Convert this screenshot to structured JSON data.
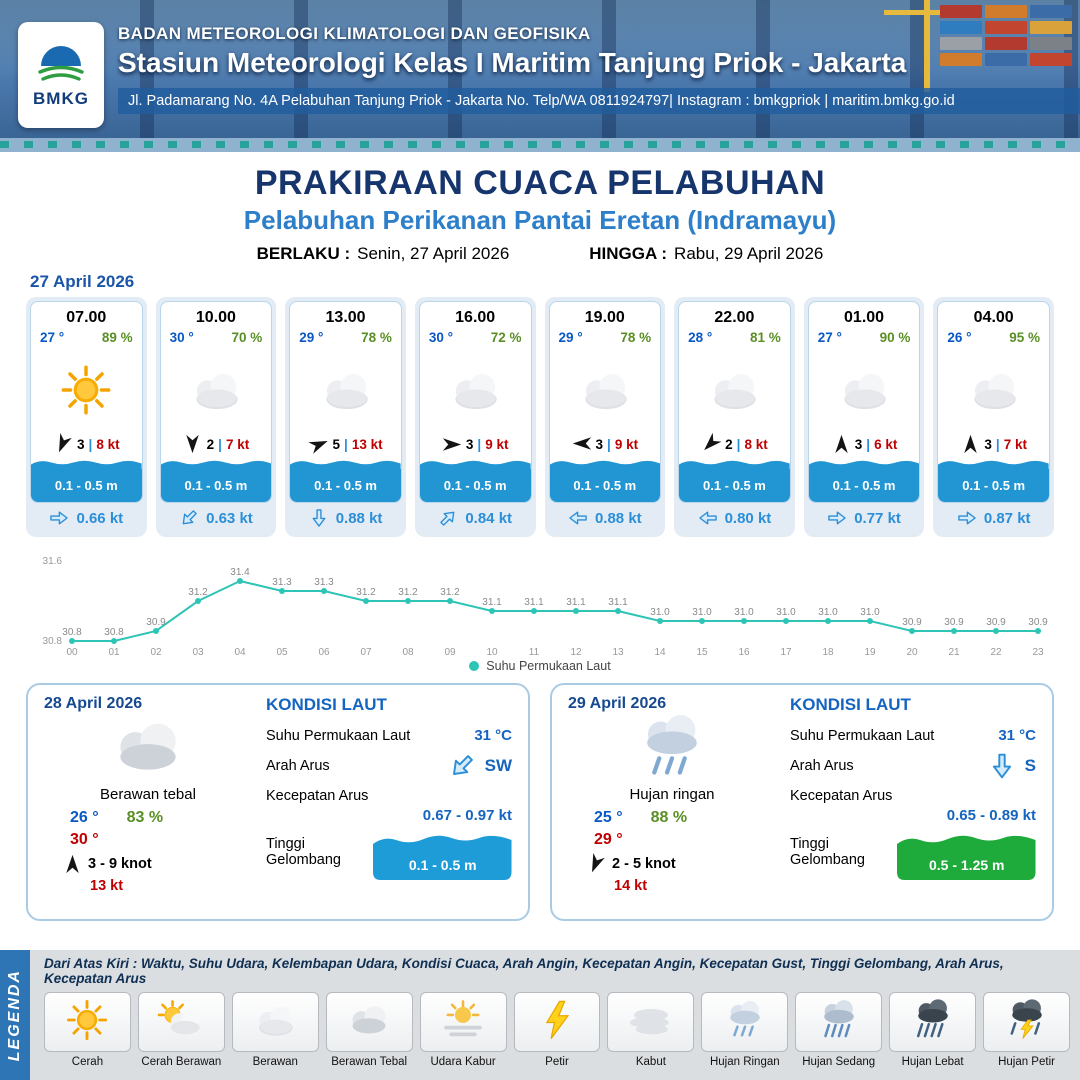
{
  "header": {
    "logo_label": "BMKG",
    "agency": "BADAN METEOROLOGI KLIMATOLOGI DAN GEOFISIKA",
    "station": "Stasiun Meteorologi Kelas I Maritim Tanjung Priok - Jakarta",
    "address": "Jl. Padamarang No. 4A Pelabuhan Tanjung Priok - Jakarta No. Telp/WA 0811924797| Instagram : bmkgpriok | maritim.bmkg.go.id"
  },
  "title": {
    "main": "PRAKIRAAN CUACA PELABUHAN",
    "subtitle": "Pelabuhan Perikanan Pantai Eretan (Indramayu)",
    "valid_from_label": "BERLAKU :",
    "valid_from": "Senin, 27 April 2026",
    "valid_to_label": "HINGGA :",
    "valid_to": "Rabu, 29 April 2026"
  },
  "forecast_date": "27 April 2026",
  "forecast_cards": [
    {
      "time": "07.00",
      "temp": "27 °",
      "humidity": "89 %",
      "icon": "cerah",
      "wind_dir": "SSW",
      "wind_force": "3",
      "wind_speed": "8 kt",
      "wave": "0.1 - 0.5 m",
      "current_dir": "E",
      "current_speed": "0.66 kt"
    },
    {
      "time": "10.00",
      "temp": "30 °",
      "humidity": "70 %",
      "icon": "berawan",
      "wind_dir": "S",
      "wind_force": "2",
      "wind_speed": "7 kt",
      "wave": "0.1 - 0.5 m",
      "current_dir": "SW",
      "current_speed": "0.63 kt"
    },
    {
      "time": "13.00",
      "temp": "29 °",
      "humidity": "78 %",
      "icon": "berawan",
      "wind_dir": "ENE",
      "wind_force": "5",
      "wind_speed": "13 kt",
      "wave": "0.1 - 0.5 m",
      "current_dir": "S",
      "current_speed": "0.88 kt"
    },
    {
      "time": "16.00",
      "temp": "30 °",
      "humidity": "72 %",
      "icon": "berawan",
      "wind_dir": "E",
      "wind_force": "3",
      "wind_speed": "9 kt",
      "wave": "0.1 - 0.5 m",
      "current_dir": "NE",
      "current_speed": "0.84 kt"
    },
    {
      "time": "19.00",
      "temp": "29 °",
      "humidity": "78 %",
      "icon": "berawan",
      "wind_dir": "W",
      "wind_force": "3",
      "wind_speed": "9 kt",
      "wave": "0.1 - 0.5 m",
      "current_dir": "W",
      "current_speed": "0.88 kt"
    },
    {
      "time": "22.00",
      "temp": "28 °",
      "humidity": "81 %",
      "icon": "berawan",
      "wind_dir": "SW",
      "wind_force": "2",
      "wind_speed": "8 kt",
      "wave": "0.1 - 0.5 m",
      "current_dir": "W",
      "current_speed": "0.80 kt"
    },
    {
      "time": "01.00",
      "temp": "27 °",
      "humidity": "90 %",
      "icon": "berawan",
      "wind_dir": "N",
      "wind_force": "3",
      "wind_speed": "6 kt",
      "wave": "0.1 - 0.5 m",
      "current_dir": "E",
      "current_speed": "0.77 kt"
    },
    {
      "time": "04.00",
      "temp": "26 °",
      "humidity": "95 %",
      "icon": "berawan",
      "wind_dir": "N",
      "wind_force": "3",
      "wind_speed": "7 kt",
      "wave": "0.1 - 0.5 m",
      "current_dir": "E",
      "current_speed": "0.87 kt"
    }
  ],
  "chart_data": {
    "type": "line",
    "series_name": "Suhu Permukaan Laut",
    "x": [
      "00",
      "01",
      "02",
      "03",
      "04",
      "05",
      "06",
      "07",
      "08",
      "09",
      "10",
      "11",
      "12",
      "13",
      "14",
      "15",
      "16",
      "17",
      "18",
      "19",
      "20",
      "21",
      "22",
      "23"
    ],
    "values": [
      30.8,
      30.8,
      30.9,
      31.2,
      31.4,
      31.3,
      31.3,
      31.2,
      31.2,
      31.2,
      31.1,
      31.1,
      31.1,
      31.1,
      31.0,
      31.0,
      31.0,
      31.0,
      31.0,
      31.0,
      30.9,
      30.9,
      30.9,
      30.9
    ],
    "ylim": [
      30.8,
      31.6
    ],
    "xlabel": "",
    "ylabel": "",
    "grid": false,
    "legend_position": "bottom-center",
    "line_color": "#2ec4b6"
  },
  "daily_cards": [
    {
      "date": "28 April 2026",
      "icon": "berawan-tebal",
      "condition": "Berawan tebal",
      "temp_min": "26 °",
      "temp_max": "30 °",
      "humidity": "83 %",
      "wind_dir": "N",
      "wind_range": "3 - 9 knot",
      "gust": "13 kt",
      "sea": {
        "heading": "KONDISI LAUT",
        "sst_label": "Suhu Permukaan Laut",
        "sst": "31 °C",
        "current_dir_label": "Arah Arus",
        "current_dir": "SW",
        "current_speed_label": "Kecepatan Arus",
        "current_speed": "0.67 - 0.97 kt",
        "wave_label": "Tinggi Gelombang",
        "wave": "0.1 - 0.5 m",
        "wave_color": "#1e9cd7"
      }
    },
    {
      "date": "29 April 2026",
      "icon": "hujan-ringan",
      "condition": "Hujan ringan",
      "temp_min": "25 °",
      "temp_max": "29 °",
      "humidity": "88 %",
      "wind_dir": "SSW",
      "wind_range": "2 - 5 knot",
      "gust": "14 kt",
      "sea": {
        "heading": "KONDISI LAUT",
        "sst_label": "Suhu Permukaan Laut",
        "sst": "31 °C",
        "current_dir_label": "Arah Arus",
        "current_dir": "S",
        "current_speed_label": "Kecepatan Arus",
        "current_speed": "0.65 - 0.89 kt",
        "wave_label": "Tinggi Gelombang",
        "wave": "0.5 - 1.25 m",
        "wave_color": "#1faa3c"
      }
    }
  ],
  "legend": {
    "banner": "LEGENDA",
    "note": "Dari Atas Kiri : Waktu, Suhu Udara, Kelembapan Udara, Kondisi Cuaca, Arah Angin, Kecepatan Angin, Kecepatan Gust, Tinggi Gelombang, Arah Arus, Kecepatan Arus",
    "items": [
      {
        "label": "Cerah",
        "icon": "cerah"
      },
      {
        "label": "Cerah Berawan",
        "icon": "cerah-berawan"
      },
      {
        "label": "Berawan",
        "icon": "berawan"
      },
      {
        "label": "Berawan Tebal",
        "icon": "berawan-tebal"
      },
      {
        "label": "Udara Kabur",
        "icon": "udara-kabur"
      },
      {
        "label": "Petir",
        "icon": "petir"
      },
      {
        "label": "Kabut",
        "icon": "kabut"
      },
      {
        "label": "Hujan Ringan",
        "icon": "hujan-ringan"
      },
      {
        "label": "Hujan Sedang",
        "icon": "hujan-sedang"
      },
      {
        "label": "Hujan Lebat",
        "icon": "hujan-lebat"
      },
      {
        "label": "Hujan Petir",
        "icon": "hujan-petir"
      }
    ]
  },
  "colors": {
    "header_navy": "#16356d",
    "subtitle_blue": "#2e7fc9",
    "temp_blue": "#0a58c5",
    "humidity_green": "#5a8f25",
    "wind_speed_red": "#c00000",
    "wave_band_blue": "#2196d3",
    "chart_teal": "#2ec4b6",
    "legend_banner_blue": "#2e75b6"
  }
}
